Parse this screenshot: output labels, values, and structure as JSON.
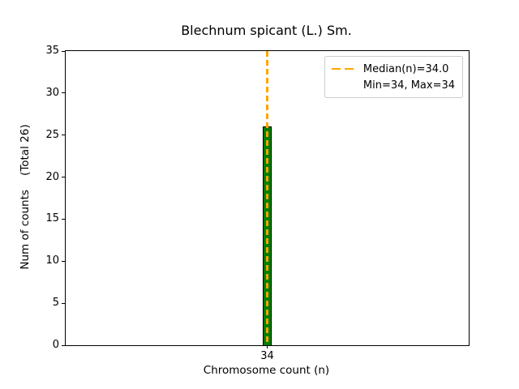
{
  "chart_data": {
    "type": "bar",
    "title": "Blechnum spicant (L.) Sm.",
    "xlabel": "Chromosome count (n)",
    "ylabel": "Num of counts    (Total 26)",
    "categories": [
      "34"
    ],
    "values": [
      26
    ],
    "total_counts": 26,
    "median": 34.0,
    "min": 34,
    "max": 34,
    "ylim": [
      0,
      35
    ],
    "yticks": [
      0,
      5,
      10,
      15,
      20,
      25,
      30,
      35
    ],
    "xticks": [
      "34"
    ],
    "grid": false,
    "bar_fill_color": "#008000",
    "bar_edge_color": "#000000",
    "median_line_color": "#FFA500",
    "median_line_style": "dashed",
    "legend": {
      "position": "upper right",
      "entries": [
        {
          "label": "Median(n)=34.0",
          "marker": "dashed-line",
          "color": "#FFA500"
        },
        {
          "label": "Min=34, Max=34",
          "marker": "none",
          "color": ""
        }
      ]
    }
  }
}
